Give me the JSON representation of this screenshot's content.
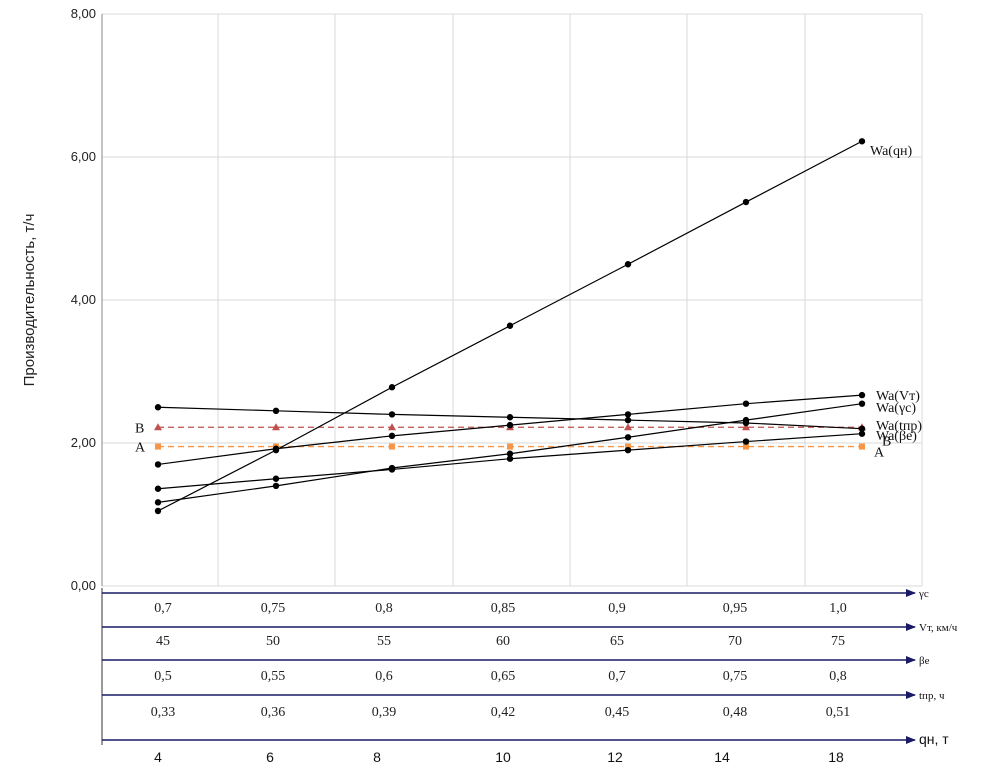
{
  "chart_data": {
    "type": "line",
    "ylabel": "Производительность, т/ч",
    "ylim": [
      0,
      8
    ],
    "y_ticks": [
      "0,00",
      "2,00",
      "4,00",
      "6,00",
      "8,00"
    ],
    "grid": true,
    "x_steps": 7,
    "series": [
      {
        "name": "Wa(qн)",
        "label_text": "Wa(qн)",
        "values": [
          1.05,
          1.9,
          2.78,
          3.64,
          4.5,
          5.37,
          6.22
        ],
        "marker": "circle",
        "color": "#000000"
      },
      {
        "name": "Wa(Vт)",
        "label_text": "Wa(Vт)",
        "values": [
          1.7,
          1.92,
          2.1,
          2.25,
          2.4,
          2.55,
          2.67
        ],
        "marker": "circle",
        "color": "#000000"
      },
      {
        "name": "Wa(γс)",
        "label_text": "Wa(γс)",
        "values": [
          1.17,
          1.4,
          1.65,
          1.85,
          2.08,
          2.32,
          2.55
        ],
        "marker": "circle",
        "color": "#000000"
      },
      {
        "name": "Wa(tпр)",
        "label_text": "Wa(tпр)",
        "values": [
          2.5,
          2.45,
          2.4,
          2.36,
          2.32,
          2.28,
          2.2
        ],
        "marker": "circle",
        "color": "#000000"
      },
      {
        "name": "Wa(βе)",
        "label_text": "Wa(βе)",
        "values": [
          1.36,
          1.5,
          1.63,
          1.78,
          1.9,
          2.02,
          2.13
        ],
        "marker": "circle",
        "color": "#000000"
      }
    ],
    "reference_lines": [
      {
        "name": "B",
        "value": 2.22,
        "color": "#c0504d",
        "marker": "triangle"
      },
      {
        "name": "A",
        "value": 1.95,
        "color": "#f79646",
        "marker": "square"
      }
    ],
    "x_axes": [
      {
        "name": "γс",
        "values": [
          "0,7",
          "0,75",
          "0,8",
          "0,85",
          "0,9",
          "0,95",
          "1,0"
        ]
      },
      {
        "name": "Vт, км/ч",
        "values": [
          "45",
          "50",
          "55",
          "60",
          "65",
          "70",
          "75"
        ]
      },
      {
        "name": "βе",
        "values": [
          "0,5",
          "0,55",
          "0,6",
          "0,65",
          "0,7",
          "0,75",
          "0,8"
        ]
      },
      {
        "name": "tпр, ч",
        "values": [
          "0,33",
          "0,36",
          "0,39",
          "0,42",
          "0,45",
          "0,48",
          "0,51"
        ]
      },
      {
        "name": "qн, т",
        "values": [
          "4",
          "6",
          "8",
          "10",
          "12",
          "14",
          "18"
        ]
      }
    ]
  }
}
